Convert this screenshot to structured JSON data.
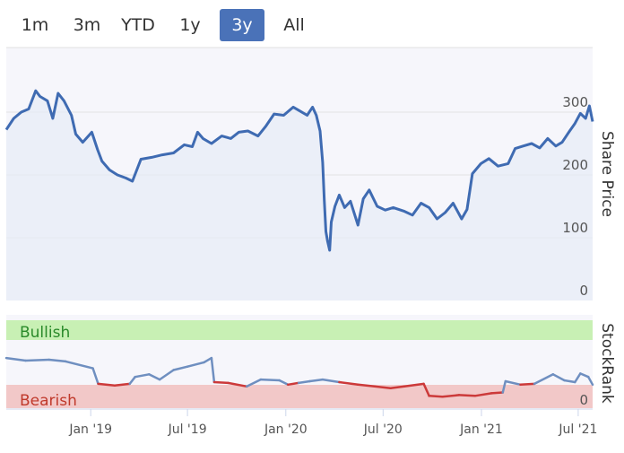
{
  "range_selector": {
    "buttons": [
      {
        "label": "1m",
        "active": false
      },
      {
        "label": "3m",
        "active": false
      },
      {
        "label": "YTD",
        "active": false
      },
      {
        "label": "1y",
        "active": false
      },
      {
        "label": "3y",
        "active": true
      },
      {
        "label": "All",
        "active": false
      }
    ]
  },
  "chart_data": [
    {
      "type": "line",
      "ylabel": "Share Price",
      "y_ticks": [
        "0",
        "100",
        "200",
        "300"
      ],
      "ylim": [
        0,
        390
      ],
      "x_range": [
        "2018-07-27",
        "2021-07-28"
      ],
      "color": "#3f6bb2",
      "grid": true,
      "series": [
        {
          "values": [
            [
              "2018-07-27",
              272
            ],
            [
              "2018-08-10",
              290
            ],
            [
              "2018-08-24",
              300
            ],
            [
              "2018-09-07",
              305
            ],
            [
              "2018-09-20",
              334
            ],
            [
              "2018-09-28",
              325
            ],
            [
              "2018-10-12",
              318
            ],
            [
              "2018-10-22",
              290
            ],
            [
              "2018-11-01",
              330
            ],
            [
              "2018-11-12",
              318
            ],
            [
              "2018-11-26",
              295
            ],
            [
              "2018-12-04",
              265
            ],
            [
              "2018-12-17",
              252
            ],
            [
              "2019-01-03",
              268
            ],
            [
              "2019-01-14",
              240
            ],
            [
              "2019-01-22",
              222
            ],
            [
              "2019-02-05",
              208
            ],
            [
              "2019-02-20",
              200
            ],
            [
              "2019-03-08",
              195
            ],
            [
              "2019-03-20",
              190
            ],
            [
              "2019-04-05",
              225
            ],
            [
              "2019-04-25",
              228
            ],
            [
              "2019-05-15",
              232
            ],
            [
              "2019-06-05",
              235
            ],
            [
              "2019-06-25",
              248
            ],
            [
              "2019-07-10",
              245
            ],
            [
              "2019-07-20",
              268
            ],
            [
              "2019-07-30",
              258
            ],
            [
              "2019-08-15",
              250
            ],
            [
              "2019-09-03",
              262
            ],
            [
              "2019-09-20",
              258
            ],
            [
              "2019-10-05",
              268
            ],
            [
              "2019-10-22",
              270
            ],
            [
              "2019-11-10",
              262
            ],
            [
              "2019-11-25",
              278
            ],
            [
              "2019-12-10",
              297
            ],
            [
              "2019-12-28",
              295
            ],
            [
              "2020-01-15",
              308
            ],
            [
              "2020-01-25",
              303
            ],
            [
              "2020-02-10",
              295
            ],
            [
              "2020-02-20",
              308
            ],
            [
              "2020-02-27",
              295
            ],
            [
              "2020-03-05",
              270
            ],
            [
              "2020-03-10",
              220
            ],
            [
              "2020-03-13",
              160
            ],
            [
              "2020-03-16",
              110
            ],
            [
              "2020-03-19",
              95
            ],
            [
              "2020-03-23",
              80
            ],
            [
              "2020-03-26",
              125
            ],
            [
              "2020-04-02",
              150
            ],
            [
              "2020-04-10",
              168
            ],
            [
              "2020-04-20",
              148
            ],
            [
              "2020-05-01",
              158
            ],
            [
              "2020-05-15",
              120
            ],
            [
              "2020-05-25",
              162
            ],
            [
              "2020-06-05",
              176
            ],
            [
              "2020-06-20",
              150
            ],
            [
              "2020-07-05",
              144
            ],
            [
              "2020-07-20",
              148
            ],
            [
              "2020-08-10",
              142
            ],
            [
              "2020-08-25",
              136
            ],
            [
              "2020-09-10",
              155
            ],
            [
              "2020-09-25",
              148
            ],
            [
              "2020-10-10",
              130
            ],
            [
              "2020-10-25",
              140
            ],
            [
              "2020-11-09",
              155
            ],
            [
              "2020-11-25",
              130
            ],
            [
              "2020-12-05",
              145
            ],
            [
              "2020-12-15",
              202
            ],
            [
              "2020-12-31",
              218
            ],
            [
              "2021-01-15",
              226
            ],
            [
              "2021-02-01",
              214
            ],
            [
              "2021-02-20",
              218
            ],
            [
              "2021-03-05",
              242
            ],
            [
              "2021-03-20",
              246
            ],
            [
              "2021-04-05",
              250
            ],
            [
              "2021-04-20",
              243
            ],
            [
              "2021-05-05",
              258
            ],
            [
              "2021-05-20",
              246
            ],
            [
              "2021-06-01",
              252
            ],
            [
              "2021-06-15",
              270
            ],
            [
              "2021-06-25",
              282
            ],
            [
              "2021-07-05",
              298
            ],
            [
              "2021-07-15",
              290
            ],
            [
              "2021-07-22",
              310
            ],
            [
              "2021-07-28",
              285
            ]
          ]
        }
      ]
    },
    {
      "type": "line",
      "ylabel": "StockRank",
      "y_ticks": [
        "0"
      ],
      "ylim": [
        0,
        100
      ],
      "bands": [
        {
          "label": "Bullish",
          "from": 75,
          "to": 100,
          "fill": "#c8f0b4",
          "text_color": "#2a8a2a"
        },
        {
          "label": "Bearish",
          "from": 0,
          "to": 25,
          "fill": "#f2c8c8",
          "text_color": "#c0392b"
        }
      ],
      "color_neutral": "#6f8fc0",
      "color_bearish": "#cc3a3a",
      "series": [
        {
          "values": [
            [
              "2018-07-27",
              52
            ],
            [
              "2018-09-01",
              49
            ],
            [
              "2018-10-15",
              50
            ],
            [
              "2018-11-15",
              48
            ],
            [
              "2019-01-05",
              40
            ],
            [
              "2019-01-15",
              22
            ],
            [
              "2019-02-15",
              20
            ],
            [
              "2019-03-15",
              22
            ],
            [
              "2019-03-25",
              30
            ],
            [
              "2019-04-20",
              33
            ],
            [
              "2019-05-10",
              27
            ],
            [
              "2019-06-05",
              38
            ],
            [
              "2019-07-01",
              42
            ],
            [
              "2019-08-01",
              47
            ],
            [
              "2019-08-15",
              52
            ],
            [
              "2019-08-20",
              24
            ],
            [
              "2019-09-15",
              23
            ],
            [
              "2019-10-20",
              19
            ],
            [
              "2019-11-15",
              27
            ],
            [
              "2019-12-20",
              26
            ],
            [
              "2020-01-05",
              21
            ],
            [
              "2020-01-25",
              23
            ],
            [
              "2020-02-15",
              25
            ],
            [
              "2020-03-10",
              27
            ],
            [
              "2020-04-10",
              24
            ],
            [
              "2020-05-15",
              21
            ],
            [
              "2020-06-15",
              19
            ],
            [
              "2020-07-15",
              17
            ],
            [
              "2020-08-10",
              19
            ],
            [
              "2020-09-15",
              22
            ],
            [
              "2020-09-25",
              8
            ],
            [
              "2020-10-20",
              7
            ],
            [
              "2020-11-20",
              9
            ],
            [
              "2020-12-20",
              8
            ],
            [
              "2021-01-20",
              11
            ],
            [
              "2021-02-10",
              12
            ],
            [
              "2021-02-15",
              25
            ],
            [
              "2021-03-15",
              21
            ],
            [
              "2021-04-10",
              22
            ],
            [
              "2021-05-15",
              33
            ],
            [
              "2021-06-05",
              26
            ],
            [
              "2021-06-25",
              24
            ],
            [
              "2021-07-05",
              34
            ],
            [
              "2021-07-20",
              30
            ],
            [
              "2021-07-28",
              21
            ]
          ]
        }
      ]
    }
  ],
  "x_axis_labels": [
    {
      "label": "Jan '19",
      "date": "2019-01-01"
    },
    {
      "label": "Jul '19",
      "date": "2019-07-01"
    },
    {
      "label": "Jan '20",
      "date": "2020-01-01"
    },
    {
      "label": "Jul '20",
      "date": "2020-07-01"
    },
    {
      "label": "Jan '21",
      "date": "2021-01-01"
    },
    {
      "label": "Jul '21",
      "date": "2021-07-01"
    }
  ]
}
